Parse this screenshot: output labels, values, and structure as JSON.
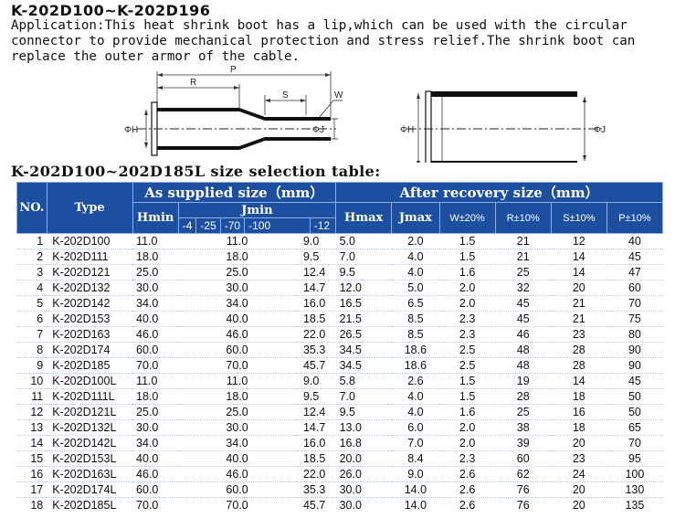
{
  "title": "K-202D100~K-202D196",
  "application": {
    "line1": "Application:This heat shrink boot has a lip,which can be used with the circular",
    "line2": "connector to provide mechanical protection and stress  relief.The shrink boot can",
    "line3": "replace the outer armor of the cable."
  },
  "diagram": {
    "label_p": "P",
    "label_r": "R",
    "label_s": "S",
    "label_w": "W",
    "label_h_left": "ΦH",
    "label_j_left": "ΦJ",
    "label_h_right": "ΦH",
    "label_j_right": "ΦJ"
  },
  "table_title": "K-202D100~202D185L size selection table:",
  "table": {
    "col_no": "NO.",
    "col_type": "Type",
    "group_supplied": "As supplied size（mm）",
    "group_recovery": "After recovery size（mm）",
    "col_hmin": "Hmin",
    "col_jmin": "Jmin",
    "jmin_sub": [
      "-4",
      "-25",
      "-70",
      "-100",
      "-12"
    ],
    "col_hmax": "Hmax",
    "col_jmax": "Jmax",
    "col_w": "W±20%",
    "col_r": "R±10%",
    "col_s": "S±10%",
    "col_p": "P±10%",
    "rows": [
      {
        "no": "1",
        "type": "K-202D100",
        "hmin": "11.0",
        "jmin": "11.0",
        "j12": "9.0",
        "hmax": "5.0",
        "jmax": "2.0",
        "w": "1.5",
        "r": "21",
        "s": "12",
        "p": "40"
      },
      {
        "no": "2",
        "type": "K-202D111",
        "hmin": "18.0",
        "jmin": "18.0",
        "j12": "9.5",
        "hmax": "7.0",
        "jmax": "4.0",
        "w": "1.5",
        "r": "21",
        "s": "14",
        "p": "45"
      },
      {
        "no": "3",
        "type": "K-202D121",
        "hmin": "25.0",
        "jmin": "25.0",
        "j12": "12.4",
        "hmax": "9.5",
        "jmax": "4.0",
        "w": "1.6",
        "r": "25",
        "s": "14",
        "p": "47"
      },
      {
        "no": "4",
        "type": "K-202D132",
        "hmin": "30.0",
        "jmin": "30.0",
        "j12": "14.7",
        "hmax": "12.0",
        "jmax": "5.0",
        "w": "2.0",
        "r": "32",
        "s": "20",
        "p": "60"
      },
      {
        "no": "5",
        "type": "K-202D142",
        "hmin": "34.0",
        "jmin": "34.0",
        "j12": "16.0",
        "hmax": "16.5",
        "jmax": "6.5",
        "w": "2.0",
        "r": "45",
        "s": "21",
        "p": "70"
      },
      {
        "no": "6",
        "type": "K-202D153",
        "hmin": "40.0",
        "jmin": "40.0",
        "j12": "18.5",
        "hmax": "21.5",
        "jmax": "8.5",
        "w": "2.3",
        "r": "45",
        "s": "21",
        "p": "75"
      },
      {
        "no": "7",
        "type": "K-202D163",
        "hmin": "46.0",
        "jmin": "46.0",
        "j12": "22.0",
        "hmax": "26.5",
        "jmax": "8.5",
        "w": "2.3",
        "r": "46",
        "s": "23",
        "p": "80"
      },
      {
        "no": "8",
        "type": "K-202D174",
        "hmin": "60.0",
        "jmin": "60.0",
        "j12": "35.3",
        "hmax": "34.5",
        "jmax": "18.6",
        "w": "2.5",
        "r": "48",
        "s": "28",
        "p": "90"
      },
      {
        "no": "9",
        "type": "K-202D185",
        "hmin": "70.0",
        "jmin": "70.0",
        "j12": "45.7",
        "hmax": "34.5",
        "jmax": "18.6",
        "w": "2.5",
        "r": "48",
        "s": "28",
        "p": "90"
      },
      {
        "no": "10",
        "type": "K-202D100L",
        "hmin": "11.0",
        "jmin": "11.0",
        "j12": "9.0",
        "hmax": "5.8",
        "jmax": "2.6",
        "w": "1.5",
        "r": "19",
        "s": "14",
        "p": "45"
      },
      {
        "no": "11",
        "type": "K-202D111L",
        "hmin": "18.0",
        "jmin": "18.0",
        "j12": "9.5",
        "hmax": "7.0",
        "jmax": "4.0",
        "w": "1.5",
        "r": "28",
        "s": "18",
        "p": "50"
      },
      {
        "no": "12",
        "type": "K-202D121L",
        "hmin": "25.0",
        "jmin": "25.0",
        "j12": "12.4",
        "hmax": "9.5",
        "jmax": "4.0",
        "w": "1.6",
        "r": "25",
        "s": "16",
        "p": "50"
      },
      {
        "no": "13",
        "type": "K-202D132L",
        "hmin": "30.0",
        "jmin": "30.0",
        "j12": "14.7",
        "hmax": "13.0",
        "jmax": "6.0",
        "w": "2.0",
        "r": "38",
        "s": "18",
        "p": "65"
      },
      {
        "no": "14",
        "type": "K-202D142L",
        "hmin": "34.0",
        "jmin": "34.0",
        "j12": "16.0",
        "hmax": "16.8",
        "jmax": "7.0",
        "w": "2.0",
        "r": "39",
        "s": "20",
        "p": "70"
      },
      {
        "no": "15",
        "type": "K-202D153L",
        "hmin": "40.0",
        "jmin": "40.0",
        "j12": "18.5",
        "hmax": "20.0",
        "jmax": "8.4",
        "w": "2.3",
        "r": "60",
        "s": "23",
        "p": "95"
      },
      {
        "no": "16",
        "type": "K-202D163L",
        "hmin": "46.0",
        "jmin": "46.0",
        "j12": "22.0",
        "hmax": "26.0",
        "jmax": "9.0",
        "w": "2.6",
        "r": "62",
        "s": "24",
        "p": "100"
      },
      {
        "no": "17",
        "type": "K-202D174L",
        "hmin": "60.0",
        "jmin": "60.0",
        "j12": "35.3",
        "hmax": "30.0",
        "jmax": "14.0",
        "w": "2.6",
        "r": "76",
        "s": "20",
        "p": "130"
      },
      {
        "no": "18",
        "type": "K-202D185L",
        "hmin": "70.0",
        "jmin": "70.0",
        "j12": "45.7",
        "hmax": "30.0",
        "jmax": "14.0",
        "w": "2.6",
        "r": "76",
        "s": "20",
        "p": "135"
      }
    ]
  }
}
